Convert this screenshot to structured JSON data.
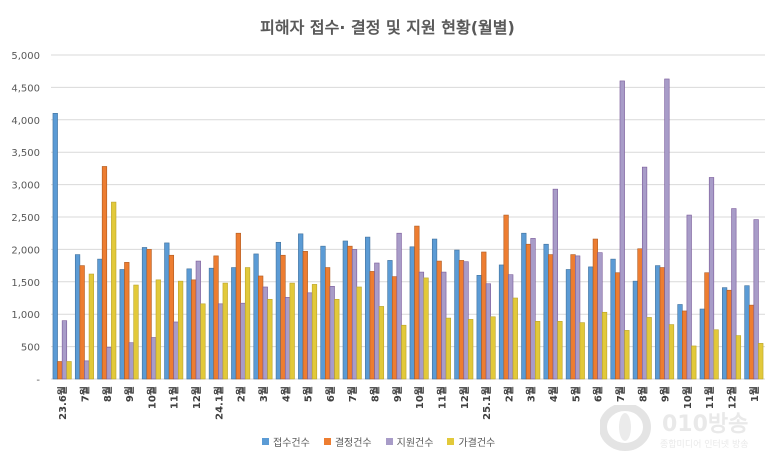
{
  "chart_data": {
    "type": "bar",
    "title": "피해자 접수· 결정 및 지원 현황(월별)",
    "xlabel": "",
    "ylabel": "",
    "ylim": [
      0,
      5000
    ],
    "yticks": [
      0,
      500,
      1000,
      1500,
      2000,
      2500,
      3000,
      3500,
      4000,
      4500,
      5000
    ],
    "ytick_labels": [
      "-",
      "500",
      "1,000",
      "1,500",
      "2,000",
      "2,500",
      "3,000",
      "3,500",
      "4,000",
      "4,500",
      "5,000"
    ],
    "grid": true,
    "legend_position": "bottom",
    "categories": [
      "23.6월",
      "7월",
      "8월",
      "9월",
      "10월",
      "11월",
      "12월",
      "24.1월",
      "2월",
      "3월",
      "4월",
      "5월",
      "6월",
      "7월",
      "8월",
      "9월",
      "10월",
      "11월",
      "12월",
      "25.1월",
      "2월",
      "3월",
      "4월",
      "5월",
      "6월",
      "7월",
      "8월",
      "9월",
      "10월",
      "11월",
      "12월",
      "1월"
    ],
    "series": [
      {
        "name": "접수건수",
        "color": "#5b9bd5",
        "values": [
          4100,
          1920,
          1850,
          1690,
          2030,
          2100,
          1700,
          1710,
          1720,
          1930,
          2110,
          2240,
          2050,
          2130,
          2190,
          1830,
          2040,
          2160,
          1990,
          1600,
          1760,
          2250,
          2080,
          1690,
          1730,
          1850,
          1510,
          1750,
          1150,
          1080,
          1410,
          1440
        ]
      },
      {
        "name": "결정건수",
        "color": "#ed7d31",
        "values": [
          270,
          1750,
          3280,
          1800,
          2000,
          1910,
          1530,
          1900,
          2250,
          1590,
          1910,
          1970,
          1720,
          2050,
          1660,
          1580,
          2360,
          1820,
          1830,
          1960,
          2530,
          2080,
          1920,
          1920,
          2160,
          1640,
          2010,
          1720,
          1050,
          1640,
          1370,
          1140
        ]
      },
      {
        "name": "지원건수",
        "color": "#a89cc8",
        "values": [
          900,
          280,
          490,
          560,
          640,
          880,
          1820,
          1160,
          1170,
          1420,
          1260,
          1330,
          1430,
          2000,
          1790,
          2250,
          1650,
          1650,
          1810,
          1470,
          1610,
          2170,
          2930,
          1900,
          1950,
          4600,
          3270,
          4630,
          2530,
          3110,
          2630,
          2460
        ]
      },
      {
        "name": "가결건수",
        "color": "#e2c93a",
        "values": [
          270,
          1620,
          2730,
          1450,
          1530,
          1510,
          1160,
          1480,
          1720,
          1230,
          1480,
          1460,
          1230,
          1420,
          1120,
          830,
          1560,
          940,
          920,
          960,
          1250,
          890,
          890,
          870,
          1030,
          750,
          950,
          840,
          510,
          760,
          670,
          550
        ]
      }
    ]
  },
  "watermark": {
    "brand": "010방송",
    "tagline": "종합미디어 인터넷 방송"
  }
}
